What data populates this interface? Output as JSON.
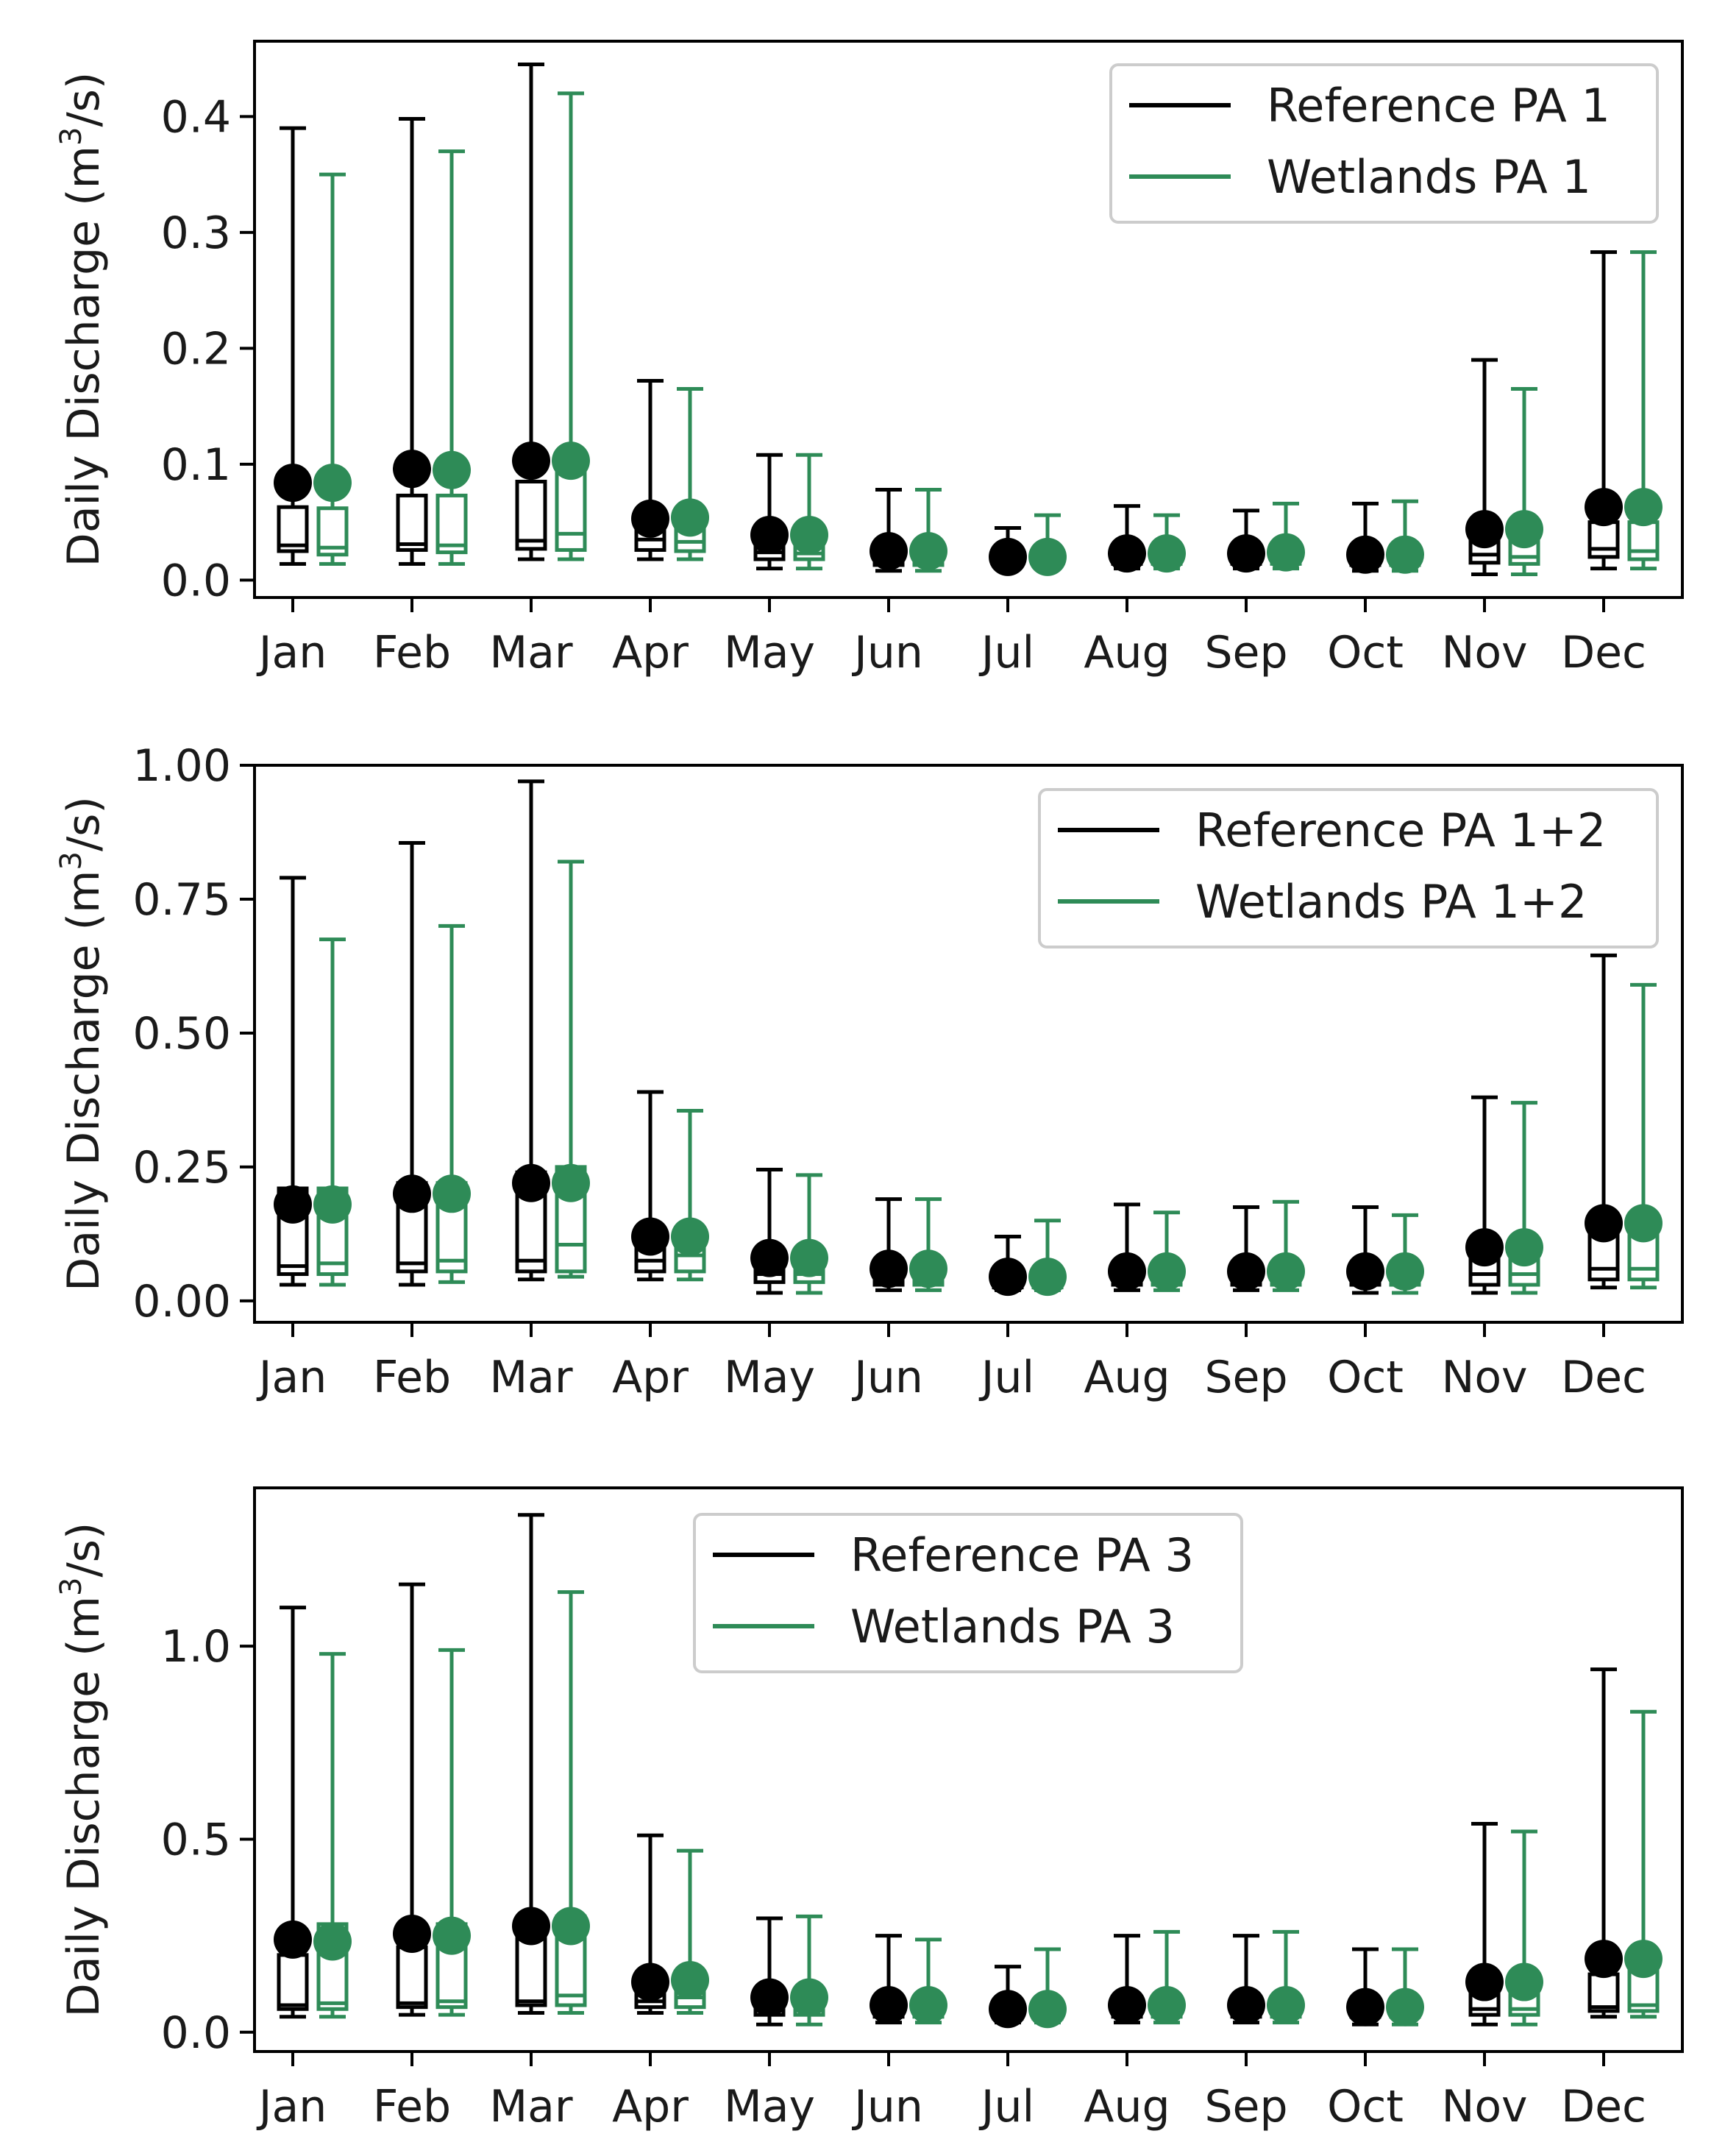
{
  "colors": {
    "reference": "#000000",
    "wetlands": "#2e8b57"
  },
  "chart_data": [
    {
      "type": "boxplot",
      "ylabel": "Daily Discharge (m³/s)",
      "ylabel_main": "Daily Discharge (m",
      "ylabel_sup": "3",
      "ylabel_tail": "/s)",
      "ylim": [
        -0.015,
        0.465
      ],
      "yticks": [
        0.0,
        0.1,
        0.2,
        0.3,
        0.4
      ],
      "ytick_labels": [
        "0.0",
        "0.1",
        "0.2",
        "0.3",
        "0.4"
      ],
      "categories": [
        "Jan",
        "Feb",
        "Mar",
        "Apr",
        "May",
        "Jun",
        "Jul",
        "Aug",
        "Sep",
        "Oct",
        "Nov",
        "Dec"
      ],
      "legend": {
        "position": "top-right",
        "entries": [
          "Reference PA 1",
          "Wetlands PA 1"
        ]
      },
      "series": [
        {
          "name": "Reference PA 1",
          "min": [
            0.014,
            0.014,
            0.018,
            0.018,
            0.01,
            0.008,
            0.01,
            0.01,
            0.01,
            0.008,
            0.005,
            0.01
          ],
          "q1": [
            0.025,
            0.026,
            0.027,
            0.026,
            0.018,
            0.013,
            0.013,
            0.014,
            0.014,
            0.013,
            0.015,
            0.02
          ],
          "median": [
            0.03,
            0.031,
            0.034,
            0.035,
            0.024,
            0.016,
            0.016,
            0.018,
            0.017,
            0.016,
            0.022,
            0.027
          ],
          "q3": [
            0.063,
            0.073,
            0.085,
            0.05,
            0.035,
            0.025,
            0.02,
            0.025,
            0.024,
            0.022,
            0.04,
            0.05
          ],
          "max": [
            0.39,
            0.398,
            0.445,
            0.172,
            0.108,
            0.078,
            0.045,
            0.064,
            0.06,
            0.066,
            0.19,
            0.283
          ],
          "mean": [
            0.084,
            0.096,
            0.103,
            0.053,
            0.039,
            0.025,
            0.02,
            0.023,
            0.023,
            0.022,
            0.044,
            0.063
          ]
        },
        {
          "name": "Wetlands PA 1",
          "min": [
            0.014,
            0.014,
            0.018,
            0.018,
            0.01,
            0.008,
            0.01,
            0.01,
            0.01,
            0.008,
            0.005,
            0.01
          ],
          "q1": [
            0.022,
            0.024,
            0.026,
            0.025,
            0.018,
            0.013,
            0.013,
            0.014,
            0.014,
            0.013,
            0.014,
            0.018
          ],
          "median": [
            0.028,
            0.03,
            0.04,
            0.033,
            0.023,
            0.016,
            0.016,
            0.018,
            0.017,
            0.016,
            0.02,
            0.025
          ],
          "q3": [
            0.062,
            0.073,
            0.1,
            0.05,
            0.035,
            0.025,
            0.02,
            0.025,
            0.024,
            0.022,
            0.04,
            0.05
          ],
          "max": [
            0.35,
            0.37,
            0.42,
            0.165,
            0.108,
            0.078,
            0.056,
            0.056,
            0.066,
            0.068,
            0.165,
            0.283
          ],
          "mean": [
            0.084,
            0.095,
            0.103,
            0.054,
            0.039,
            0.025,
            0.02,
            0.023,
            0.024,
            0.022,
            0.044,
            0.063
          ]
        }
      ]
    },
    {
      "type": "boxplot",
      "ylabel": "Daily Discharge (m³/s)",
      "ylabel_main": "Daily Discharge (m",
      "ylabel_sup": "3",
      "ylabel_tail": "/s)",
      "ylim": [
        -0.04,
        1.0
      ],
      "yticks": [
        0.0,
        0.25,
        0.5,
        0.75,
        1.0
      ],
      "ytick_labels": [
        "0.00",
        "0.25",
        "0.50",
        "0.75",
        "1.00"
      ],
      "categories": [
        "Jan",
        "Feb",
        "Mar",
        "Apr",
        "May",
        "Jun",
        "Jul",
        "Aug",
        "Sep",
        "Oct",
        "Nov",
        "Dec"
      ],
      "legend": {
        "position": "top-right",
        "entries": [
          "Reference PA 1+2",
          "Wetlands PA 1+2"
        ]
      },
      "series": [
        {
          "name": "Reference PA 1+2",
          "min": [
            0.03,
            0.03,
            0.04,
            0.04,
            0.015,
            0.02,
            0.02,
            0.02,
            0.02,
            0.015,
            0.015,
            0.025
          ],
          "q1": [
            0.05,
            0.055,
            0.055,
            0.055,
            0.035,
            0.03,
            0.025,
            0.03,
            0.03,
            0.03,
            0.03,
            0.04
          ],
          "median": [
            0.065,
            0.07,
            0.075,
            0.075,
            0.05,
            0.04,
            0.035,
            0.04,
            0.04,
            0.04,
            0.05,
            0.06
          ],
          "q3": [
            0.21,
            0.22,
            0.24,
            0.12,
            0.08,
            0.06,
            0.045,
            0.06,
            0.055,
            0.055,
            0.1,
            0.14
          ],
          "max": [
            0.79,
            0.855,
            0.97,
            0.39,
            0.245,
            0.19,
            0.12,
            0.18,
            0.175,
            0.175,
            0.38,
            0.645
          ],
          "mean": [
            0.18,
            0.2,
            0.22,
            0.12,
            0.08,
            0.06,
            0.045,
            0.055,
            0.055,
            0.055,
            0.1,
            0.145
          ]
        },
        {
          "name": "Wetlands PA 1+2",
          "min": [
            0.03,
            0.035,
            0.045,
            0.04,
            0.015,
            0.02,
            0.02,
            0.02,
            0.02,
            0.015,
            0.015,
            0.025
          ],
          "q1": [
            0.05,
            0.055,
            0.055,
            0.055,
            0.035,
            0.03,
            0.025,
            0.03,
            0.03,
            0.03,
            0.03,
            0.04
          ],
          "median": [
            0.07,
            0.075,
            0.105,
            0.085,
            0.05,
            0.04,
            0.035,
            0.04,
            0.04,
            0.04,
            0.05,
            0.06
          ],
          "q3": [
            0.21,
            0.22,
            0.25,
            0.12,
            0.08,
            0.06,
            0.045,
            0.06,
            0.055,
            0.055,
            0.1,
            0.14
          ],
          "max": [
            0.675,
            0.7,
            0.82,
            0.355,
            0.235,
            0.19,
            0.15,
            0.165,
            0.185,
            0.16,
            0.37,
            0.59
          ],
          "mean": [
            0.18,
            0.2,
            0.22,
            0.12,
            0.08,
            0.06,
            0.045,
            0.055,
            0.055,
            0.055,
            0.1,
            0.145
          ]
        }
      ]
    },
    {
      "type": "boxplot",
      "ylabel": "Daily Discharge (m³/s)",
      "ylabel_main": "Daily Discharge (m",
      "ylabel_sup": "3",
      "ylabel_tail": "/s)",
      "ylim": [
        -0.05,
        1.41
      ],
      "yticks": [
        0.0,
        0.5,
        1.0
      ],
      "ytick_labels": [
        "0.0",
        "0.5",
        "1.0"
      ],
      "categories": [
        "Jan",
        "Feb",
        "Mar",
        "Apr",
        "May",
        "Jun",
        "Jul",
        "Aug",
        "Sep",
        "Oct",
        "Nov",
        "Dec"
      ],
      "legend": {
        "position": "upper-center",
        "entries": [
          "Reference PA 3",
          "Wetlands PA 3"
        ]
      },
      "series": [
        {
          "name": "Reference PA 3",
          "min": [
            0.04,
            0.045,
            0.05,
            0.05,
            0.02,
            0.025,
            0.025,
            0.025,
            0.025,
            0.02,
            0.02,
            0.04
          ],
          "q1": [
            0.06,
            0.065,
            0.07,
            0.065,
            0.045,
            0.04,
            0.035,
            0.04,
            0.04,
            0.04,
            0.045,
            0.055
          ],
          "median": [
            0.07,
            0.075,
            0.08,
            0.08,
            0.06,
            0.05,
            0.045,
            0.05,
            0.05,
            0.05,
            0.06,
            0.065
          ],
          "q3": [
            0.2,
            0.22,
            0.26,
            0.12,
            0.08,
            0.065,
            0.055,
            0.07,
            0.065,
            0.065,
            0.11,
            0.15
          ],
          "max": [
            1.1,
            1.16,
            1.34,
            0.51,
            0.295,
            0.25,
            0.17,
            0.25,
            0.25,
            0.215,
            0.54,
            0.94
          ],
          "mean": [
            0.24,
            0.255,
            0.275,
            0.13,
            0.09,
            0.07,
            0.06,
            0.07,
            0.07,
            0.065,
            0.13,
            0.19
          ]
        },
        {
          "name": "Wetlands PA 3",
          "min": [
            0.04,
            0.045,
            0.05,
            0.05,
            0.02,
            0.025,
            0.025,
            0.025,
            0.025,
            0.02,
            0.02,
            0.04
          ],
          "q1": [
            0.06,
            0.065,
            0.07,
            0.065,
            0.045,
            0.04,
            0.035,
            0.04,
            0.04,
            0.04,
            0.045,
            0.055
          ],
          "median": [
            0.075,
            0.08,
            0.095,
            0.09,
            0.06,
            0.05,
            0.045,
            0.05,
            0.05,
            0.05,
            0.06,
            0.07
          ],
          "q3": [
            0.28,
            0.28,
            0.3,
            0.13,
            0.085,
            0.065,
            0.055,
            0.07,
            0.065,
            0.065,
            0.11,
            0.2
          ],
          "max": [
            0.98,
            0.99,
            1.14,
            0.47,
            0.3,
            0.24,
            0.215,
            0.26,
            0.26,
            0.215,
            0.52,
            0.83
          ],
          "mean": [
            0.235,
            0.25,
            0.275,
            0.135,
            0.09,
            0.07,
            0.06,
            0.07,
            0.07,
            0.065,
            0.13,
            0.19
          ]
        }
      ]
    }
  ]
}
